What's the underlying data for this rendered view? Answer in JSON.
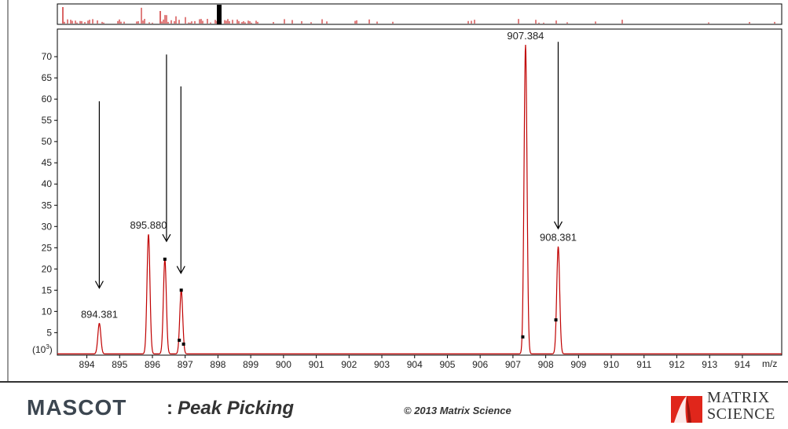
{
  "chart_data": {
    "type": "line",
    "xlabel": "m/z",
    "ylabel": "(10",
    "ylabel_exponent": "3",
    "xlim": [
      893.1,
      915.2
    ],
    "ylim": [
      -0.3,
      76.5
    ],
    "xticks": [
      894,
      895,
      896,
      897,
      898,
      899,
      900,
      901,
      902,
      903,
      904,
      905,
      906,
      907,
      908,
      909,
      910,
      911,
      912,
      913,
      914
    ],
    "yticks": [
      5,
      10,
      15,
      20,
      25,
      30,
      35,
      40,
      45,
      50,
      55,
      60,
      65,
      70
    ],
    "baseline": 0,
    "line_color": "#c00000",
    "peaks": [
      {
        "x": 894.381,
        "y": 7.2,
        "label": "894.381"
      },
      {
        "x": 895.88,
        "y": 28.2,
        "label": "895.880"
      },
      {
        "x": 896.38,
        "y": 22.3,
        "label": ""
      },
      {
        "x": 896.88,
        "y": 15.0,
        "label": ""
      },
      {
        "x": 907.384,
        "y": 72.8,
        "label": "907.384"
      },
      {
        "x": 908.381,
        "y": 25.3,
        "label": "908.381"
      }
    ],
    "markers": [
      {
        "x": 896.38,
        "y": 22.3
      },
      {
        "x": 896.88,
        "y": 15.0
      },
      {
        "x": 896.82,
        "y": 3.2
      },
      {
        "x": 896.95,
        "y": 2.3
      },
      {
        "x": 907.3,
        "y": 4.0
      },
      {
        "x": 908.31,
        "y": 8.0
      }
    ],
    "arrows": [
      {
        "x": 894.38,
        "y_from": 59.5,
        "y_to": 15.5
      },
      {
        "x": 896.43,
        "y_from": 70.5,
        "y_to": 26.5
      },
      {
        "x": 896.87,
        "y_from": 63.0,
        "y_to": 19.0
      },
      {
        "x": 908.38,
        "y_from": 73.5,
        "y_to": 29.5
      }
    ]
  },
  "overview": {
    "highlight_color": "#000000",
    "spike_color": "#c00000"
  },
  "footer": {
    "brand": "MASCOT",
    "colon": ":",
    "subtitle": "Peak Picking",
    "copyright": "© 2013 Matrix Science",
    "logo_line1": "MATRIX",
    "logo_line2": "SCIENCE",
    "logo_color": "#e0261b"
  }
}
